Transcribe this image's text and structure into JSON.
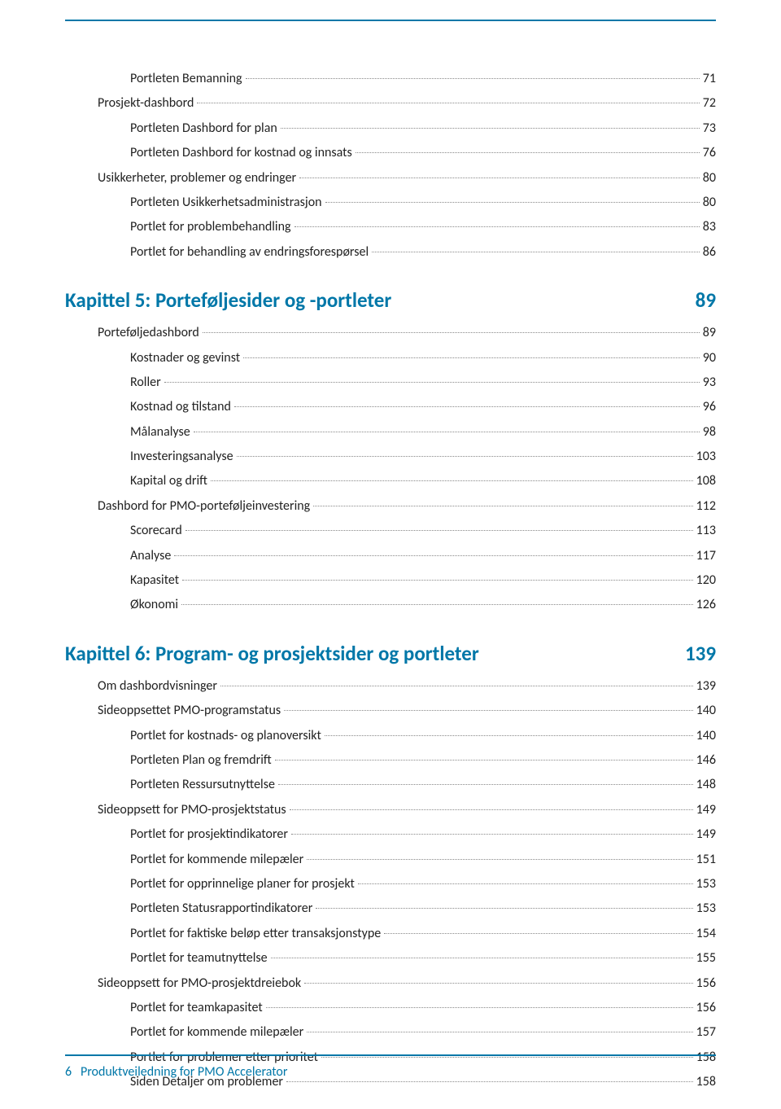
{
  "colors": {
    "accent": "#0077a8",
    "text": "#222222",
    "dots": "#888888",
    "background": "#ffffff"
  },
  "typography": {
    "body_fontsize": 16,
    "chapter_fontsize": 25,
    "footer_fontsize": 16,
    "font_family": "Segoe UI"
  },
  "top_block": [
    {
      "indent": 2,
      "label": "Portleten Bemanning",
      "page": "71"
    },
    {
      "indent": 1,
      "label": "Prosjekt-dashbord",
      "page": "72"
    },
    {
      "indent": 2,
      "label": "Portleten Dashbord for plan",
      "page": "73"
    },
    {
      "indent": 2,
      "label": "Portleten Dashbord for kostnad og innsats",
      "page": "76"
    },
    {
      "indent": 1,
      "label": "Usikkerheter, problemer og endringer",
      "page": "80"
    },
    {
      "indent": 2,
      "label": "Portleten Usikkerhetsadministrasjon",
      "page": "80"
    },
    {
      "indent": 2,
      "label": "Portlet for problembehandling",
      "page": "83"
    },
    {
      "indent": 2,
      "label": "Portlet for behandling av endringsforespørsel",
      "page": "86"
    }
  ],
  "chapter5": {
    "title": "Kapittel 5: Porteføljesider og -portleter",
    "page": "89",
    "entries": [
      {
        "indent": 1,
        "label": "Porteføljedashbord",
        "page": "89"
      },
      {
        "indent": 2,
        "label": "Kostnader og gevinst",
        "page": "90"
      },
      {
        "indent": 2,
        "label": "Roller",
        "page": "93"
      },
      {
        "indent": 2,
        "label": "Kostnad og tilstand",
        "page": "96"
      },
      {
        "indent": 2,
        "label": "Målanalyse",
        "page": "98"
      },
      {
        "indent": 2,
        "label": "Investeringsanalyse",
        "page": "103"
      },
      {
        "indent": 2,
        "label": "Kapital og drift",
        "page": "108"
      },
      {
        "indent": 1,
        "label": "Dashbord for PMO-porteføljeinvestering",
        "page": "112"
      },
      {
        "indent": 2,
        "label": "Scorecard",
        "page": "113"
      },
      {
        "indent": 2,
        "label": "Analyse",
        "page": "117"
      },
      {
        "indent": 2,
        "label": "Kapasitet",
        "page": "120"
      },
      {
        "indent": 2,
        "label": "Økonomi",
        "page": "126"
      }
    ]
  },
  "chapter6": {
    "title": "Kapittel 6: Program- og prosjektsider og portleter",
    "page": "139",
    "entries": [
      {
        "indent": 1,
        "label": "Om dashbordvisninger",
        "page": "139"
      },
      {
        "indent": 1,
        "label": "Sideoppsettet PMO-programstatus",
        "page": "140"
      },
      {
        "indent": 2,
        "label": "Portlet for kostnads- og planoversikt",
        "page": "140"
      },
      {
        "indent": 2,
        "label": "Portleten Plan og fremdrift",
        "page": "146"
      },
      {
        "indent": 2,
        "label": "Portleten Ressursutnyttelse",
        "page": "148"
      },
      {
        "indent": 1,
        "label": "Sideoppsett for PMO-prosjektstatus",
        "page": "149"
      },
      {
        "indent": 2,
        "label": "Portlet for prosjektindikatorer",
        "page": "149"
      },
      {
        "indent": 2,
        "label": "Portlet for kommende milepæler",
        "page": "151"
      },
      {
        "indent": 2,
        "label": "Portlet for opprinnelige planer for prosjekt",
        "page": "153"
      },
      {
        "indent": 2,
        "label": "Portleten Statusrapportindikatorer",
        "page": "153"
      },
      {
        "indent": 2,
        "label": "Portlet for faktiske beløp etter transaksjonstype",
        "page": "154"
      },
      {
        "indent": 2,
        "label": "Portlet for teamutnyttelse",
        "page": "155"
      },
      {
        "indent": 1,
        "label": "Sideoppsett for PMO-prosjektdreiebok",
        "page": "156"
      },
      {
        "indent": 2,
        "label": "Portlet for teamkapasitet",
        "page": "156"
      },
      {
        "indent": 2,
        "label": "Portlet for kommende milepæler",
        "page": "157"
      },
      {
        "indent": 2,
        "label": "Portlet for problemer etter prioritet",
        "page": "158"
      },
      {
        "indent": 2,
        "label": "Siden Detaljer om problemer",
        "page": "158"
      }
    ]
  },
  "footer": {
    "page_number": "6",
    "doc_title": "Produktveiledning for PMO Accelerator"
  }
}
